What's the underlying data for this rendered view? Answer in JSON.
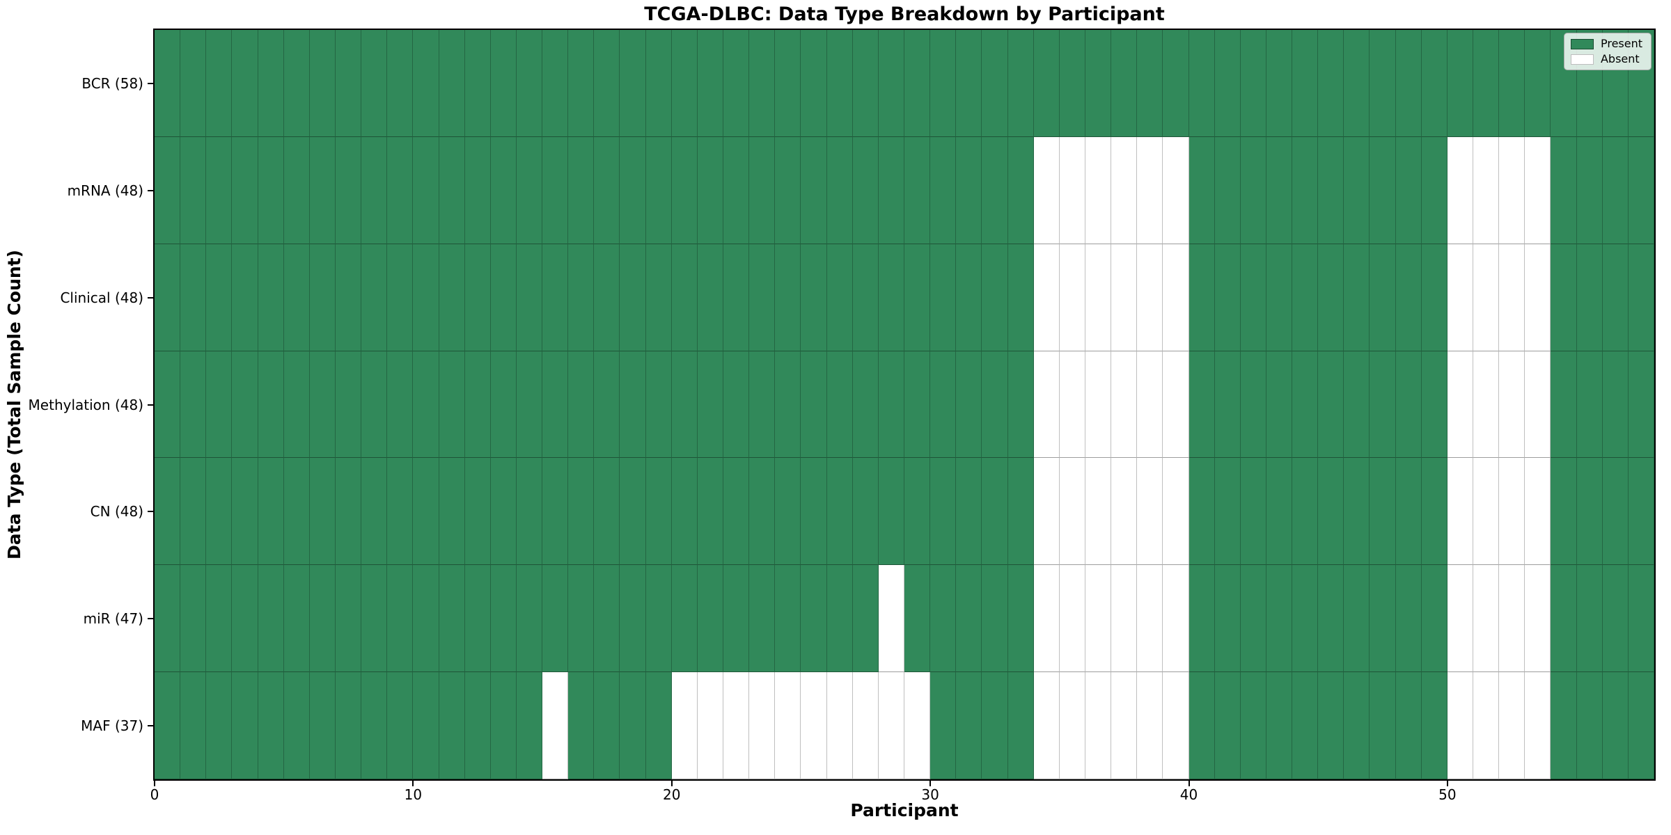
{
  "chart_data": {
    "type": "heatmap",
    "title": "TCGA-DLBC: Data Type Breakdown by Participant",
    "xlabel": "Participant",
    "ylabel": "Data Type (Total Sample Count)",
    "n_participants": 58,
    "x_range": [
      0,
      58
    ],
    "x_ticks": [
      0,
      10,
      20,
      30,
      40,
      50
    ],
    "grid": "cell-borders",
    "legend_position": "upper-right",
    "legend": [
      {
        "label": "Present",
        "value": "present",
        "color": "#31895A"
      },
      {
        "label": "Absent",
        "value": "absent",
        "color": "#FFFFFF"
      }
    ],
    "colors": {
      "present": "#31895A",
      "absent": "#FFFFFF",
      "cell_edge": "rgba(0,0,0,0.3)"
    },
    "rows": [
      {
        "label": "BCR (58)",
        "data_type": "BCR",
        "total": 58,
        "absent_participants": []
      },
      {
        "label": "mRNA (48)",
        "data_type": "mRNA",
        "total": 48,
        "absent_participants": [
          34,
          35,
          36,
          37,
          38,
          39,
          50,
          51,
          52,
          53
        ]
      },
      {
        "label": "Clinical (48)",
        "data_type": "Clinical",
        "total": 48,
        "absent_participants": [
          34,
          35,
          36,
          37,
          38,
          39,
          50,
          51,
          52,
          53
        ]
      },
      {
        "label": "Methylation (48)",
        "data_type": "Methylation",
        "total": 48,
        "absent_participants": [
          34,
          35,
          36,
          37,
          38,
          39,
          50,
          51,
          52,
          53
        ]
      },
      {
        "label": "CN (48)",
        "data_type": "CN",
        "total": 48,
        "absent_participants": [
          34,
          35,
          36,
          37,
          38,
          39,
          50,
          51,
          52,
          53
        ]
      },
      {
        "label": "miR (47)",
        "data_type": "miR",
        "total": 47,
        "absent_participants": [
          28,
          34,
          35,
          36,
          37,
          38,
          39,
          50,
          51,
          52,
          53
        ]
      },
      {
        "label": "MAF (37)",
        "data_type": "MAF",
        "total": 37,
        "absent_participants": [
          15,
          20,
          21,
          22,
          23,
          24,
          25,
          26,
          27,
          28,
          29,
          34,
          35,
          36,
          37,
          38,
          39,
          50,
          51,
          52,
          53
        ]
      }
    ]
  }
}
